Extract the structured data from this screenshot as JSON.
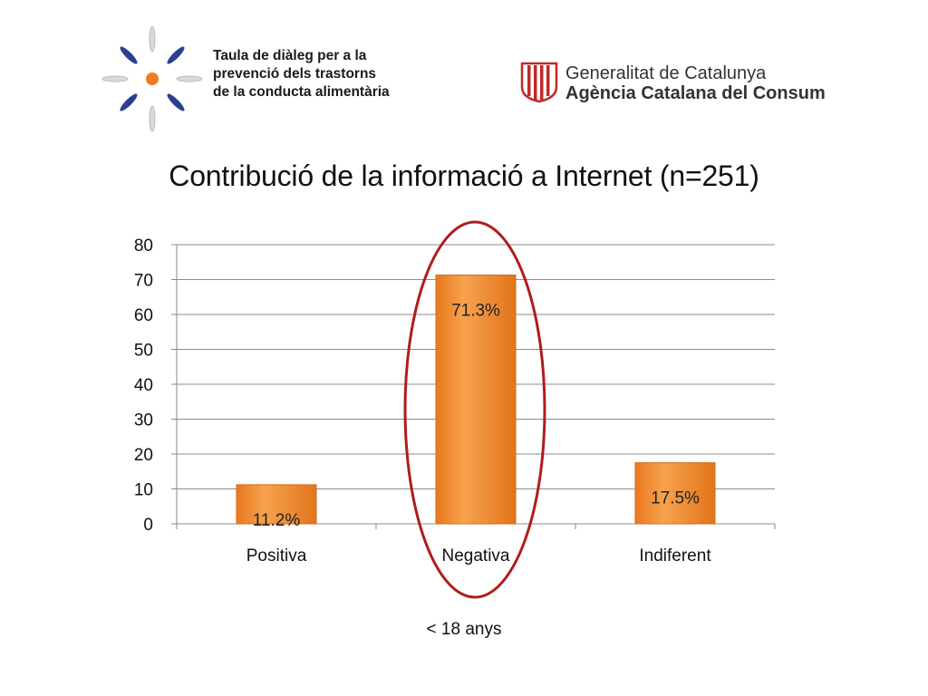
{
  "logos": {
    "left": {
      "name": "taula-dialeg-logo",
      "lines": [
        "Taula de diàleg per a la",
        "prevenció dels trastorns",
        "de la conducta alimentària"
      ]
    },
    "right": {
      "name": "generalitat-logo",
      "line1": "Generalitat de Catalunya",
      "line2": "Agència Catalana del Consum"
    }
  },
  "colors": {
    "bar_top": "#f6a04a",
    "bar_bottom": "#dd6a15",
    "ellipse": "#b01c1c",
    "axis": "#888888",
    "grid": "#8c8c8c",
    "logo_blue": "#2a3f8f",
    "logo_orange": "#f07a22",
    "flag_red": "#c0282b"
  },
  "chart_data": {
    "type": "bar",
    "title": "Contribució de la informació a Internet (n=251)",
    "categories": [
      "Positiva",
      "Negativa",
      "Indiferent"
    ],
    "values": [
      11.2,
      71.3,
      17.5
    ],
    "data_labels": [
      "11.2%",
      "71.3%",
      "17.5%"
    ],
    "xlabel": "< 18 anys",
    "ylabel": "",
    "ylim": [
      0,
      80
    ],
    "yticks": [
      0,
      10,
      20,
      30,
      40,
      50,
      60,
      70,
      80
    ],
    "grid": true,
    "legend": "none",
    "highlight": {
      "category": "Negativa",
      "shape": "ellipse"
    }
  }
}
